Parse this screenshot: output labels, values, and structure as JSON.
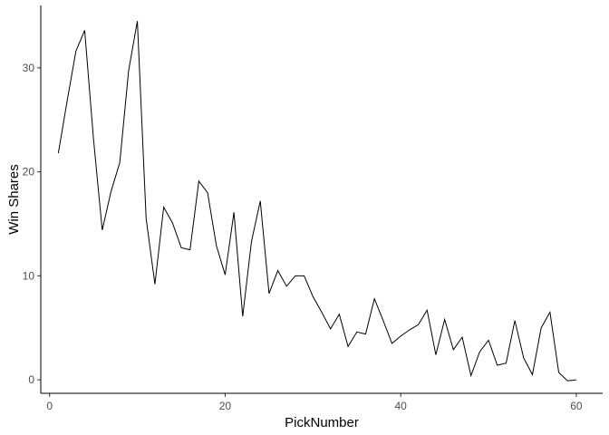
{
  "chart_data": {
    "type": "line",
    "title": "",
    "xlabel": "PickNumber",
    "ylabel": "Win Shares",
    "xlim": [
      -1,
      63
    ],
    "ylim": [
      -1.3,
      36
    ],
    "xticks": [
      0,
      20,
      40,
      60
    ],
    "yticks": [
      0,
      10,
      20,
      30
    ],
    "grid": false,
    "legend": "none",
    "line_color": "#000000",
    "axis_color": "#000000",
    "tick_label_color": "#4d4d4d",
    "series": [
      {
        "x": [
          1,
          2,
          3,
          4,
          5,
          6,
          7,
          8,
          9,
          10,
          11,
          12,
          13,
          14,
          15,
          16,
          17,
          18,
          19,
          20,
          21,
          22,
          23,
          24,
          25,
          26,
          27,
          28,
          29,
          30,
          31,
          32,
          33,
          34,
          35,
          36,
          37,
          38,
          39,
          40,
          41,
          42,
          43,
          44,
          45,
          46,
          47,
          48,
          49,
          50,
          51,
          52,
          53,
          54,
          55,
          56,
          57,
          58,
          59,
          60
        ],
        "y": [
          21.8,
          26.8,
          31.6,
          33.6,
          23.2,
          14.4,
          18.1,
          20.9,
          29.7,
          34.5,
          15.5,
          9.2,
          16.6,
          15.1,
          12.7,
          12.5,
          19.1,
          18.0,
          12.9,
          10.1,
          16.1,
          6.1,
          13.3,
          17.2,
          8.3,
          10.5,
          9.0,
          10.0,
          10.0,
          8.0,
          6.5,
          4.9,
          6.3,
          3.2,
          4.6,
          4.4,
          7.8,
          5.7,
          3.5,
          4.2,
          4.8,
          5.3,
          6.7,
          2.4,
          5.8,
          2.9,
          4.1,
          0.4,
          2.7,
          3.8,
          1.4,
          1.6,
          5.7,
          2.1,
          0.5,
          5.0,
          6.5,
          0.7,
          -0.1,
          0.0
        ]
      }
    ]
  }
}
